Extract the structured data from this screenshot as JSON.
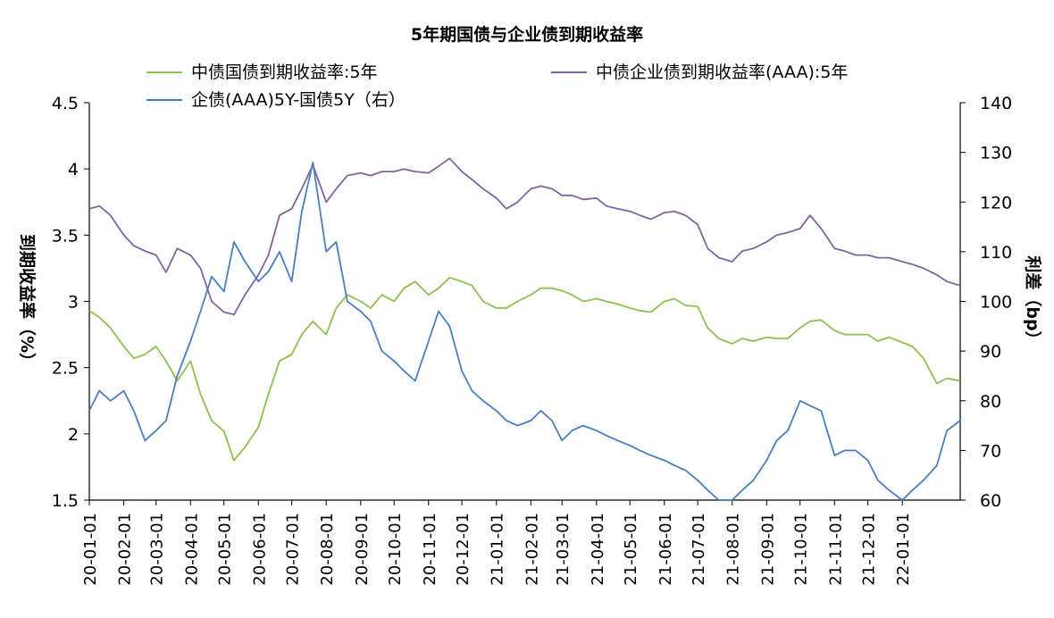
{
  "chart_data": {
    "type": "line",
    "title": "5年期国债与企业债到期收益率",
    "ylabel_left": "到期收益率（%）",
    "ylabel_right": "利差（bp）",
    "ylim_left": [
      1.5,
      4.5
    ],
    "yticks_left": [
      "1.5",
      "2",
      "2.5",
      "3",
      "3.5",
      "4",
      "4.5"
    ],
    "ylim_right": [
      60,
      140
    ],
    "yticks_right": [
      "60",
      "70",
      "80",
      "90",
      "100",
      "110",
      "120",
      "130",
      "140"
    ],
    "grid": false,
    "legend_position": "top",
    "x_labels": [
      "20-01-01",
      "20-02-01",
      "20-03-01",
      "20-04-01",
      "20-05-01",
      "20-06-01",
      "20-07-01",
      "20-08-01",
      "20-09-01",
      "20-10-01",
      "20-11-01",
      "20-12-01",
      "21-01-01",
      "21-02-01",
      "21-03-01",
      "21-04-01",
      "21-05-01",
      "21-06-01",
      "21-07-01",
      "21-08-01",
      "21-09-01",
      "21-10-01",
      "21-11-01",
      "21-12-01",
      "22-01-01"
    ],
    "x_start": "2020-01-01",
    "x_end": "2022-02-22",
    "series": [
      {
        "name": "中债国债到期收益率:5年",
        "axis": "left",
        "color": "#8DC04E",
        "x": [
          "2020-01-01",
          "2020-01-10",
          "2020-01-20",
          "2020-02-01",
          "2020-02-10",
          "2020-02-20",
          "2020-03-01",
          "2020-03-10",
          "2020-03-20",
          "2020-04-01",
          "2020-04-10",
          "2020-04-20",
          "2020-05-01",
          "2020-05-10",
          "2020-05-20",
          "2020-06-01",
          "2020-06-10",
          "2020-06-20",
          "2020-07-01",
          "2020-07-10",
          "2020-07-20",
          "2020-08-01",
          "2020-08-10",
          "2020-08-20",
          "2020-09-01",
          "2020-09-10",
          "2020-09-20",
          "2020-10-01",
          "2020-10-10",
          "2020-10-20",
          "2020-11-01",
          "2020-11-10",
          "2020-11-20",
          "2020-12-01",
          "2020-12-10",
          "2020-12-20",
          "2021-01-01",
          "2021-01-10",
          "2021-01-20",
          "2021-02-01",
          "2021-02-10",
          "2021-02-20",
          "2021-03-01",
          "2021-03-10",
          "2021-03-20",
          "2021-04-01",
          "2021-04-10",
          "2021-04-20",
          "2021-05-01",
          "2021-05-10",
          "2021-05-20",
          "2021-06-01",
          "2021-06-10",
          "2021-06-20",
          "2021-07-01",
          "2021-07-10",
          "2021-07-20",
          "2021-08-01",
          "2021-08-10",
          "2021-08-20",
          "2021-09-01",
          "2021-09-10",
          "2021-09-20",
          "2021-10-01",
          "2021-10-10",
          "2021-10-20",
          "2021-11-01",
          "2021-11-10",
          "2021-11-20",
          "2021-12-01",
          "2021-12-10",
          "2021-12-20",
          "2022-01-01",
          "2022-01-10",
          "2022-01-20",
          "2022-02-01",
          "2022-02-10",
          "2022-02-22"
        ],
        "values": [
          2.93,
          2.88,
          2.8,
          2.66,
          2.57,
          2.6,
          2.66,
          2.55,
          2.4,
          2.55,
          2.3,
          2.1,
          2.02,
          1.8,
          1.9,
          2.05,
          2.3,
          2.55,
          2.6,
          2.75,
          2.85,
          2.75,
          2.95,
          3.05,
          3.0,
          2.95,
          3.05,
          3.0,
          3.1,
          3.15,
          3.05,
          3.1,
          3.18,
          3.15,
          3.12,
          3.0,
          2.95,
          2.95,
          3.0,
          3.05,
          3.1,
          3.1,
          3.08,
          3.05,
          3.0,
          3.02,
          3.0,
          2.98,
          2.95,
          2.93,
          2.92,
          3.0,
          3.02,
          2.97,
          2.96,
          2.8,
          2.72,
          2.68,
          2.72,
          2.7,
          2.73,
          2.72,
          2.72,
          2.8,
          2.85,
          2.86,
          2.78,
          2.75,
          2.75,
          2.75,
          2.7,
          2.73,
          2.69,
          2.66,
          2.57,
          2.38,
          2.42,
          2.4
        ]
      },
      {
        "name": "中债企业债到期收益率(AAA):5年",
        "axis": "left",
        "color": "#8064A2",
        "x": [
          "2020-01-01",
          "2020-01-10",
          "2020-01-20",
          "2020-02-01",
          "2020-02-10",
          "2020-02-20",
          "2020-03-01",
          "2020-03-10",
          "2020-03-20",
          "2020-04-01",
          "2020-04-10",
          "2020-04-20",
          "2020-05-01",
          "2020-05-10",
          "2020-05-20",
          "2020-06-01",
          "2020-06-10",
          "2020-06-20",
          "2020-07-01",
          "2020-07-10",
          "2020-07-20",
          "2020-08-01",
          "2020-08-10",
          "2020-08-20",
          "2020-09-01",
          "2020-09-10",
          "2020-09-20",
          "2020-10-01",
          "2020-10-10",
          "2020-10-20",
          "2020-11-01",
          "2020-11-10",
          "2020-11-20",
          "2020-12-01",
          "2020-12-10",
          "2020-12-20",
          "2021-01-01",
          "2021-01-10",
          "2021-01-20",
          "2021-02-01",
          "2021-02-10",
          "2021-02-20",
          "2021-03-01",
          "2021-03-10",
          "2021-03-20",
          "2021-04-01",
          "2021-04-10",
          "2021-04-20",
          "2021-05-01",
          "2021-05-10",
          "2021-05-20",
          "2021-06-01",
          "2021-06-10",
          "2021-06-20",
          "2021-07-01",
          "2021-07-10",
          "2021-07-20",
          "2021-08-01",
          "2021-08-10",
          "2021-08-20",
          "2021-09-01",
          "2021-09-10",
          "2021-09-20",
          "2021-10-01",
          "2021-10-10",
          "2021-10-20",
          "2021-11-01",
          "2021-11-10",
          "2021-11-20",
          "2021-12-01",
          "2021-12-10",
          "2021-12-20",
          "2022-01-01",
          "2022-01-10",
          "2022-01-20",
          "2022-02-01",
          "2022-02-10",
          "2022-02-22"
        ],
        "values": [
          3.7,
          3.72,
          3.65,
          3.5,
          3.42,
          3.38,
          3.35,
          3.22,
          3.4,
          3.35,
          3.25,
          3.0,
          2.92,
          2.9,
          3.05,
          3.2,
          3.35,
          3.65,
          3.7,
          3.85,
          4.03,
          3.75,
          3.85,
          3.95,
          3.97,
          3.95,
          3.98,
          3.98,
          4.0,
          3.98,
          3.97,
          4.02,
          4.08,
          3.98,
          3.92,
          3.85,
          3.78,
          3.7,
          3.75,
          3.85,
          3.87,
          3.85,
          3.8,
          3.8,
          3.77,
          3.78,
          3.72,
          3.7,
          3.68,
          3.65,
          3.62,
          3.67,
          3.68,
          3.65,
          3.58,
          3.4,
          3.33,
          3.3,
          3.38,
          3.4,
          3.45,
          3.5,
          3.52,
          3.55,
          3.65,
          3.55,
          3.4,
          3.38,
          3.35,
          3.35,
          3.33,
          3.33,
          3.3,
          3.28,
          3.25,
          3.2,
          3.15,
          3.12
        ]
      },
      {
        "name": "企债(AAA)5Y-国债5Y（右）",
        "axis": "right",
        "color": "#4A7EC1",
        "x": [
          "2020-01-01",
          "2020-01-10",
          "2020-01-20",
          "2020-02-01",
          "2020-02-10",
          "2020-02-20",
          "2020-03-01",
          "2020-03-10",
          "2020-03-20",
          "2020-04-01",
          "2020-04-10",
          "2020-04-20",
          "2020-05-01",
          "2020-05-10",
          "2020-05-20",
          "2020-06-01",
          "2020-06-10",
          "2020-06-20",
          "2020-07-01",
          "2020-07-10",
          "2020-07-20",
          "2020-08-01",
          "2020-08-10",
          "2020-08-20",
          "2020-09-01",
          "2020-09-10",
          "2020-09-20",
          "2020-10-01",
          "2020-10-10",
          "2020-10-20",
          "2020-11-01",
          "2020-11-10",
          "2020-11-20",
          "2020-12-01",
          "2020-12-10",
          "2020-12-20",
          "2021-01-01",
          "2021-01-10",
          "2021-01-20",
          "2021-02-01",
          "2021-02-10",
          "2021-02-20",
          "2021-03-01",
          "2021-03-10",
          "2021-03-20",
          "2021-04-01",
          "2021-04-10",
          "2021-04-20",
          "2021-05-01",
          "2021-05-10",
          "2021-05-20",
          "2021-06-01",
          "2021-06-10",
          "2021-06-20",
          "2021-07-01",
          "2021-07-10",
          "2021-07-20",
          "2021-08-01",
          "2021-08-10",
          "2021-08-20",
          "2021-09-01",
          "2021-09-10",
          "2021-09-20",
          "2021-10-01",
          "2021-10-10",
          "2021-10-20",
          "2021-11-01",
          "2021-11-10",
          "2021-11-20",
          "2021-12-01",
          "2021-12-10",
          "2021-12-20",
          "2022-01-01",
          "2022-01-10",
          "2022-01-20",
          "2022-02-01",
          "2022-02-10",
          "2022-02-22"
        ],
        "values": [
          78,
          82,
          80,
          82,
          78,
          72,
          74,
          76,
          85,
          92,
          98,
          105,
          102,
          112,
          108,
          104,
          106,
          110,
          104,
          118,
          128,
          110,
          112,
          100,
          98,
          96,
          90,
          88,
          86,
          84,
          92,
          98,
          95,
          86,
          82,
          80,
          78,
          76,
          75,
          76,
          78,
          76,
          72,
          74,
          75,
          74,
          73,
          72,
          71,
          70,
          69,
          68,
          67,
          66,
          64,
          62,
          60,
          60,
          62,
          64,
          68,
          72,
          74,
          80,
          79,
          78,
          69,
          70,
          70,
          68,
          64,
          62,
          60,
          62,
          64,
          67,
          74,
          76
        ]
      }
    ]
  }
}
